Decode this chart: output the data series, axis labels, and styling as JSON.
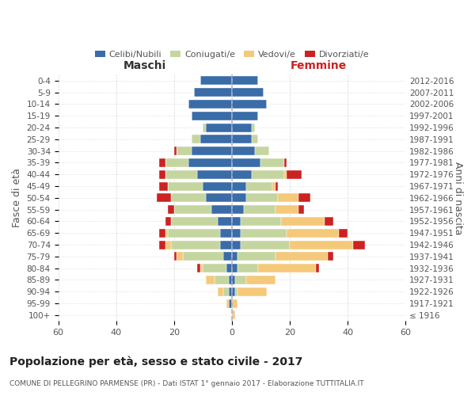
{
  "age_groups": [
    "100+",
    "95-99",
    "90-94",
    "85-89",
    "80-84",
    "75-79",
    "70-74",
    "65-69",
    "60-64",
    "55-59",
    "50-54",
    "45-49",
    "40-44",
    "35-39",
    "30-34",
    "25-29",
    "20-24",
    "15-19",
    "10-14",
    "5-9",
    "0-4"
  ],
  "birth_years": [
    "≤ 1916",
    "1917-1921",
    "1922-1926",
    "1927-1931",
    "1932-1936",
    "1937-1941",
    "1942-1946",
    "1947-1951",
    "1952-1956",
    "1957-1961",
    "1962-1966",
    "1967-1971",
    "1972-1976",
    "1977-1981",
    "1982-1986",
    "1987-1991",
    "1992-1996",
    "1997-2001",
    "2002-2006",
    "2007-2011",
    "2012-2016"
  ],
  "males": {
    "celibi": [
      0,
      1,
      1,
      1,
      2,
      3,
      4,
      4,
      5,
      7,
      9,
      10,
      12,
      15,
      14,
      11,
      9,
      14,
      15,
      13,
      11
    ],
    "coniugati": [
      0,
      0,
      2,
      5,
      8,
      14,
      17,
      18,
      16,
      13,
      12,
      12,
      11,
      8,
      5,
      3,
      1,
      0,
      0,
      0,
      0
    ],
    "vedovi": [
      0,
      1,
      2,
      3,
      1,
      2,
      2,
      1,
      0,
      0,
      0,
      0,
      0,
      0,
      0,
      0,
      0,
      0,
      0,
      0,
      0
    ],
    "divorziati": [
      0,
      0,
      0,
      0,
      1,
      1,
      2,
      2,
      2,
      2,
      5,
      3,
      2,
      2,
      1,
      0,
      0,
      0,
      0,
      0,
      0
    ]
  },
  "females": {
    "nubili": [
      0,
      0,
      1,
      1,
      2,
      2,
      3,
      3,
      3,
      4,
      5,
      5,
      7,
      10,
      8,
      7,
      7,
      9,
      12,
      11,
      9
    ],
    "coniugate": [
      0,
      0,
      1,
      4,
      7,
      13,
      17,
      16,
      14,
      11,
      11,
      9,
      11,
      8,
      5,
      2,
      1,
      0,
      0,
      0,
      0
    ],
    "vedove": [
      1,
      2,
      10,
      10,
      20,
      18,
      22,
      18,
      15,
      8,
      7,
      1,
      1,
      0,
      0,
      0,
      0,
      0,
      0,
      0,
      0
    ],
    "divorziate": [
      0,
      0,
      0,
      0,
      1,
      2,
      4,
      3,
      3,
      2,
      4,
      1,
      5,
      1,
      0,
      0,
      0,
      0,
      0,
      0,
      0
    ]
  },
  "colors": {
    "celibi": "#3a6ca8",
    "coniugati": "#c5d5a0",
    "vedovi": "#f5c97a",
    "divorziati": "#cc2222"
  },
  "xlim": 60,
  "title": "Popolazione per età, sesso e stato civile - 2017",
  "subtitle": "COMUNE DI PELLEGRINO PARMENSE (PR) - Dati ISTAT 1° gennaio 2017 - Elaborazione TUTTITALIA.IT",
  "ylabel": "Fasce di età",
  "right_ylabel": "Anni di nascita",
  "legend_labels": [
    "Celibi/Nubili",
    "Coniugati/e",
    "Vedovi/e",
    "Divorziati/e"
  ],
  "maschi_label": "Maschi",
  "femmine_label": "Femmine",
  "xticks": [
    60,
    40,
    20,
    0,
    20,
    40,
    60
  ],
  "xtick_labels": [
    "60",
    "40",
    "20",
    "0",
    "20",
    "40",
    "60"
  ],
  "background_color": "#ffffff",
  "grid_color": "#cccccc"
}
